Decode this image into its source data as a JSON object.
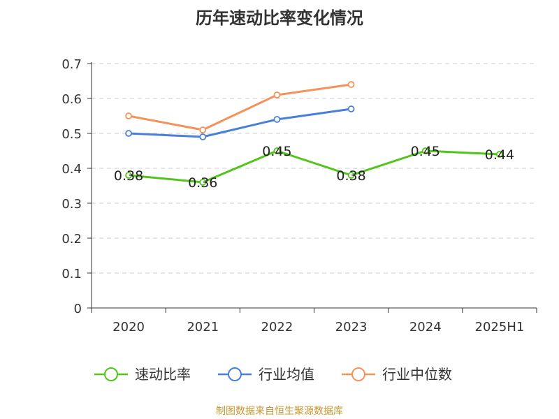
{
  "chart_data": {
    "type": "line",
    "title": "历年速动比率变化情况",
    "categories": [
      "2020",
      "2021",
      "2022",
      "2023",
      "2024",
      "2025H1"
    ],
    "ylim": [
      0,
      0.7
    ],
    "yticks": [
      "0",
      "0.1",
      "0.2",
      "0.3",
      "0.4",
      "0.5",
      "0.6",
      "0.7"
    ],
    "grid": true,
    "legend_position": "bottom",
    "series": [
      {
        "name": "速动比率",
        "color": "#52c41a",
        "values": [
          0.38,
          0.36,
          0.45,
          0.38,
          0.45,
          0.44
        ],
        "labels": [
          "0.38",
          "0.36",
          "0.45",
          "0.38",
          "0.45",
          "0.44"
        ]
      },
      {
        "name": "行业均值",
        "color": "#4a7fd8",
        "values": [
          0.5,
          0.49,
          0.54,
          0.57,
          null,
          null
        ]
      },
      {
        "name": "行业中位数",
        "color": "#f5925a",
        "values": [
          0.55,
          0.51,
          0.61,
          0.64,
          null,
          null
        ]
      }
    ]
  },
  "source": "制图数据来自恒生聚源数据库"
}
